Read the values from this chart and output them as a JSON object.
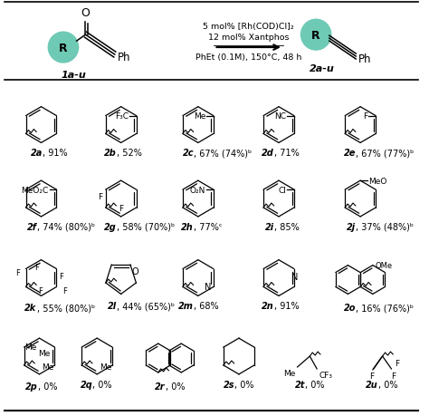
{
  "bg": "#ffffff",
  "teal": "#6ecab5",
  "cond1": "5 mol% [Rh(COD)Cl]₂",
  "cond2": "12 mol% Xantphos",
  "cond3": "PhEt (0.1M), 150°C, 48 h",
  "compounds": [
    {
      "id": "2a",
      "yield_str": "91%",
      "type": "phenyl",
      "sub": null,
      "sub_pos": null,
      "row": 0,
      "col": 0
    },
    {
      "id": "2b",
      "yield_str": "52%",
      "type": "phenyl",
      "sub": "F₃C",
      "sub_pos": "L",
      "row": 0,
      "col": 1
    },
    {
      "id": "2c",
      "yield_str": "67% (74%)ᵇ",
      "type": "phenyl",
      "sub": "Me",
      "sub_pos": "L",
      "row": 0,
      "col": 2
    },
    {
      "id": "2d",
      "yield_str": "71%",
      "type": "phenyl",
      "sub": "NC",
      "sub_pos": "L",
      "row": 0,
      "col": 3
    },
    {
      "id": "2e",
      "yield_str": "67% (77%)ᵇ",
      "type": "phenyl",
      "sub": "F",
      "sub_pos": "L",
      "row": 0,
      "col": 4
    },
    {
      "id": "2f",
      "yield_str": "74% (80%)ᵇ",
      "type": "phenyl",
      "sub": "MeO₂C",
      "sub_pos": "L",
      "row": 1,
      "col": 0
    },
    {
      "id": "2g",
      "yield_str": "58% (70%)ᵇ",
      "type": "phenyl26F",
      "sub": null,
      "sub_pos": null,
      "row": 1,
      "col": 1
    },
    {
      "id": "2h",
      "yield_str": "77%ᶜ",
      "type": "phenyl",
      "sub": "O₂N",
      "sub_pos": "L",
      "row": 1,
      "col": 2
    },
    {
      "id": "2i",
      "yield_str": "85%",
      "type": "phenyl",
      "sub": "Cl",
      "sub_pos": "L",
      "row": 1,
      "col": 3
    },
    {
      "id": "2j",
      "yield_str": "37% (48%)ᵇ",
      "type": "phenyl",
      "sub": "MeO",
      "sub_pos": "R",
      "row": 1,
      "col": 4
    },
    {
      "id": "2k",
      "yield_str": "55% (80%)ᵇ",
      "type": "pentaF",
      "sub": null,
      "sub_pos": null,
      "row": 2,
      "col": 0
    },
    {
      "id": "2l",
      "yield_str": "44% (65%)ᵇ",
      "type": "furan",
      "sub": null,
      "sub_pos": null,
      "row": 2,
      "col": 1
    },
    {
      "id": "2m",
      "yield_str": "68%",
      "type": "pyridine3",
      "sub": null,
      "sub_pos": null,
      "row": 2,
      "col": 2
    },
    {
      "id": "2n",
      "yield_str": "91%",
      "type": "pyridine2",
      "sub": null,
      "sub_pos": null,
      "row": 2,
      "col": 3
    },
    {
      "id": "2o",
      "yield_str": "16% (76%)ᵇ",
      "type": "naphthOMe",
      "sub": null,
      "sub_pos": null,
      "row": 2,
      "col": 4
    },
    {
      "id": "2p",
      "yield_str": "0%",
      "type": "mesityl",
      "sub": null,
      "sub_pos": null,
      "row": 3,
      "col": 0
    },
    {
      "id": "2q",
      "yield_str": "0%",
      "type": "phenyl2Me",
      "sub": null,
      "sub_pos": null,
      "row": 3,
      "col": 1
    },
    {
      "id": "2r",
      "yield_str": "0%",
      "type": "naphth1",
      "sub": null,
      "sub_pos": null,
      "row": 3,
      "col": 2
    },
    {
      "id": "2s",
      "yield_str": "0%",
      "type": "cyclohex",
      "sub": null,
      "sub_pos": null,
      "row": 3,
      "col": 3
    },
    {
      "id": "2t",
      "yield_str": "0%",
      "type": "meCF3",
      "sub": null,
      "sub_pos": null,
      "row": 3,
      "col": 4
    },
    {
      "id": "2u",
      "yield_str": "0%",
      "type": "gemCF3",
      "sub": null,
      "sub_pos": null,
      "row": 3,
      "col": 5
    }
  ]
}
